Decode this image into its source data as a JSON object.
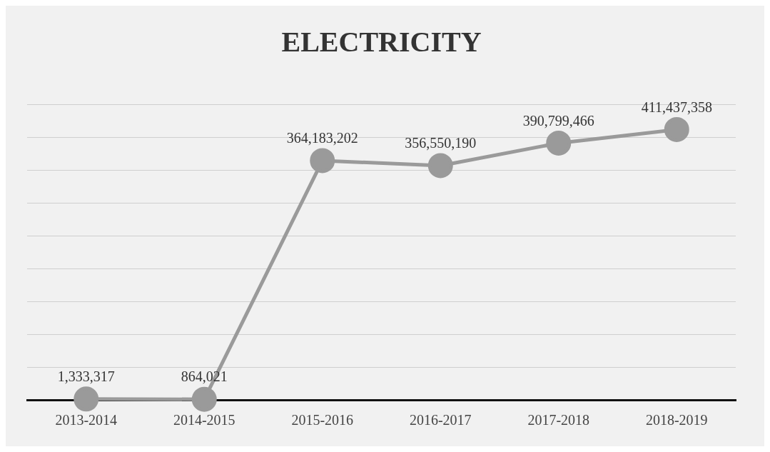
{
  "chart_data": {
    "type": "line",
    "title": "ELECTRICITY",
    "categories": [
      "2013-2014",
      "2014-2015",
      "2015-2016",
      "2016-2017",
      "2017-2018",
      "2018-2019"
    ],
    "series": [
      {
        "color": "#9a9a9a",
        "values": [
          1333317,
          864021,
          364183202,
          356550190,
          390799466,
          411437358
        ],
        "value_labels": [
          "1,333,317",
          "864,021",
          "364,183,202",
          "356,550,190",
          "390,799,466",
          "411,437,358"
        ]
      }
    ],
    "grid": "y",
    "tick_labels": "x",
    "marker": "circle",
    "legend": false
  }
}
